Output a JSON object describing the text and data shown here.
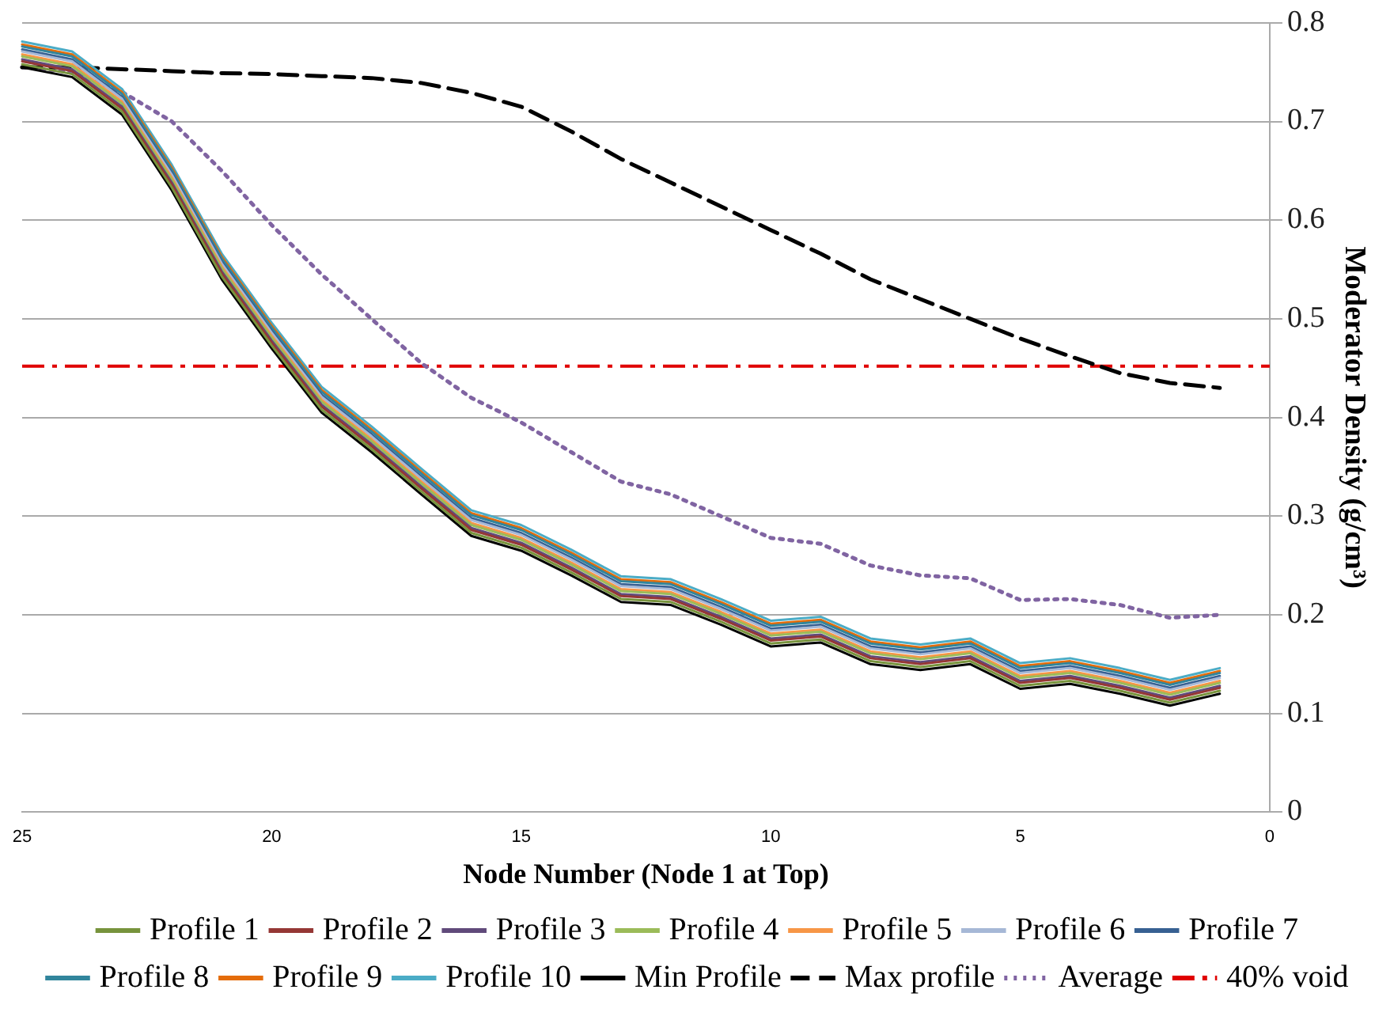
{
  "chart_data": {
    "type": "line",
    "xlabel": "Node Number (Node 1 at Top)",
    "ylabel": "Moderator Density (g/cm³)",
    "x": [
      25,
      24,
      23,
      22,
      21,
      20,
      19,
      18,
      17,
      16,
      15,
      14,
      13,
      12,
      11,
      10,
      9,
      8,
      7,
      6,
      5,
      4,
      3,
      2,
      1
    ],
    "xlim": [
      25,
      0
    ],
    "xticks": [
      25,
      20,
      15,
      10,
      5,
      0
    ],
    "ylim": [
      0,
      0.8
    ],
    "yticks": [
      0,
      {
        "value": 0.1,
        "label": "0.1"
      },
      {
        "value": 0.2,
        "label": "0.2"
      },
      {
        "value": 0.3,
        "label": "0.3"
      },
      {
        "value": 0.4,
        "label": "0.4"
      },
      {
        "value": 0.5,
        "label": "0.5"
      },
      {
        "value": 0.6,
        "label": "0.6"
      },
      {
        "value": 0.7,
        "label": "0.7"
      },
      {
        "value": 0.8,
        "label": "0.8"
      }
    ],
    "grid": "y",
    "legend": "bottom",
    "marker": "none",
    "series": [
      {
        "name": "Profile 1",
        "color": "#77933c",
        "line_style": "solid",
        "values": [
          0.758,
          0.748,
          0.71,
          0.633,
          0.543,
          0.473,
          0.408,
          0.368,
          0.325,
          0.283,
          0.268,
          0.243,
          0.216,
          0.213,
          0.193,
          0.171,
          0.175,
          0.153,
          0.147,
          0.153,
          0.128,
          0.133,
          0.123,
          0.111,
          0.123
        ]
      },
      {
        "name": "Profile 2",
        "color": "#953735",
        "line_style": "solid",
        "values": [
          0.761,
          0.751,
          0.713,
          0.636,
          0.546,
          0.476,
          0.411,
          0.371,
          0.328,
          0.286,
          0.271,
          0.246,
          0.219,
          0.216,
          0.196,
          0.174,
          0.178,
          0.156,
          0.15,
          0.156,
          0.131,
          0.136,
          0.126,
          0.114,
          0.126
        ]
      },
      {
        "name": "Profile 3",
        "color": "#604a7b",
        "line_style": "solid",
        "values": [
          0.763,
          0.753,
          0.715,
          0.638,
          0.548,
          0.478,
          0.413,
          0.373,
          0.33,
          0.288,
          0.273,
          0.248,
          0.221,
          0.218,
          0.198,
          0.176,
          0.18,
          0.158,
          0.152,
          0.158,
          0.133,
          0.138,
          0.128,
          0.116,
          0.128
        ]
      },
      {
        "name": "Profile 4",
        "color": "#9bbb59",
        "line_style": "solid",
        "values": [
          0.766,
          0.756,
          0.718,
          0.641,
          0.551,
          0.481,
          0.416,
          0.376,
          0.333,
          0.291,
          0.276,
          0.251,
          0.224,
          0.221,
          0.201,
          0.179,
          0.183,
          0.161,
          0.155,
          0.161,
          0.136,
          0.141,
          0.131,
          0.119,
          0.131
        ]
      },
      {
        "name": "Profile 5",
        "color": "#f79646",
        "line_style": "solid",
        "values": [
          0.768,
          0.758,
          0.72,
          0.643,
          0.553,
          0.483,
          0.418,
          0.378,
          0.335,
          0.293,
          0.278,
          0.253,
          0.226,
          0.223,
          0.203,
          0.181,
          0.185,
          0.163,
          0.157,
          0.163,
          0.138,
          0.143,
          0.133,
          0.121,
          0.133
        ]
      },
      {
        "name": "Profile 6",
        "color": "#a6b8d6",
        "line_style": "solid",
        "values": [
          0.771,
          0.761,
          0.723,
          0.646,
          0.556,
          0.486,
          0.421,
          0.381,
          0.338,
          0.296,
          0.281,
          0.256,
          0.229,
          0.226,
          0.206,
          0.184,
          0.188,
          0.166,
          0.16,
          0.166,
          0.141,
          0.146,
          0.136,
          0.124,
          0.136
        ]
      },
      {
        "name": "Profile 7",
        "color": "#376092",
        "line_style": "solid",
        "values": [
          0.773,
          0.763,
          0.725,
          0.648,
          0.558,
          0.488,
          0.423,
          0.383,
          0.34,
          0.298,
          0.283,
          0.258,
          0.231,
          0.228,
          0.208,
          0.186,
          0.19,
          0.168,
          0.162,
          0.168,
          0.143,
          0.148,
          0.138,
          0.126,
          0.138
        ]
      },
      {
        "name": "Profile 8",
        "color": "#31859c",
        "line_style": "solid",
        "values": [
          0.776,
          0.766,
          0.728,
          0.651,
          0.561,
          0.491,
          0.426,
          0.386,
          0.343,
          0.301,
          0.286,
          0.261,
          0.234,
          0.231,
          0.211,
          0.189,
          0.193,
          0.171,
          0.165,
          0.171,
          0.146,
          0.151,
          0.141,
          0.129,
          0.141
        ]
      },
      {
        "name": "Profile 9",
        "color": "#e46c0a",
        "line_style": "solid",
        "values": [
          0.778,
          0.768,
          0.73,
          0.653,
          0.563,
          0.493,
          0.428,
          0.388,
          0.345,
          0.303,
          0.288,
          0.263,
          0.236,
          0.233,
          0.213,
          0.191,
          0.195,
          0.173,
          0.167,
          0.173,
          0.148,
          0.153,
          0.143,
          0.131,
          0.143
        ]
      },
      {
        "name": "Profile 10",
        "color": "#4bacc6",
        "line_style": "solid",
        "values": [
          0.781,
          0.771,
          0.733,
          0.656,
          0.566,
          0.496,
          0.431,
          0.391,
          0.348,
          0.306,
          0.291,
          0.266,
          0.239,
          0.236,
          0.216,
          0.194,
          0.198,
          0.176,
          0.17,
          0.176,
          0.151,
          0.156,
          0.146,
          0.134,
          0.146
        ]
      },
      {
        "name": "Min Profile",
        "color": "#000000",
        "line_style": "solid",
        "values": [
          0.755,
          0.745,
          0.707,
          0.63,
          0.54,
          0.47,
          0.405,
          0.365,
          0.322,
          0.28,
          0.265,
          0.24,
          0.213,
          0.21,
          0.19,
          0.168,
          0.172,
          0.15,
          0.144,
          0.15,
          0.125,
          0.13,
          0.12,
          0.108,
          0.12
        ]
      },
      {
        "name": "Max profile",
        "color": "#000000",
        "line_style": "dashed",
        "values": [
          0.755,
          0.755,
          0.753,
          0.751,
          0.749,
          0.748,
          0.746,
          0.744,
          0.739,
          0.729,
          0.715,
          0.69,
          0.662,
          0.638,
          0.614,
          0.59,
          0.566,
          0.54,
          0.52,
          0.5,
          0.48,
          0.462,
          0.445,
          0.435,
          0.43
        ]
      },
      {
        "name": "Average",
        "color": "#8064a2",
        "line_style": "dotted",
        "values": [
          0.755,
          0.75,
          0.73,
          0.7,
          0.65,
          0.595,
          0.545,
          0.5,
          0.455,
          0.42,
          0.395,
          0.365,
          0.335,
          0.322,
          0.3,
          0.278,
          0.272,
          0.25,
          0.24,
          0.237,
          0.215,
          0.216,
          0.21,
          0.197,
          0.2
        ]
      }
    ],
    "ref_lines": [
      {
        "axis": "y",
        "value": 0.452,
        "label": "40% void",
        "color": "#e00000",
        "line_style": "dashed"
      }
    ]
  }
}
